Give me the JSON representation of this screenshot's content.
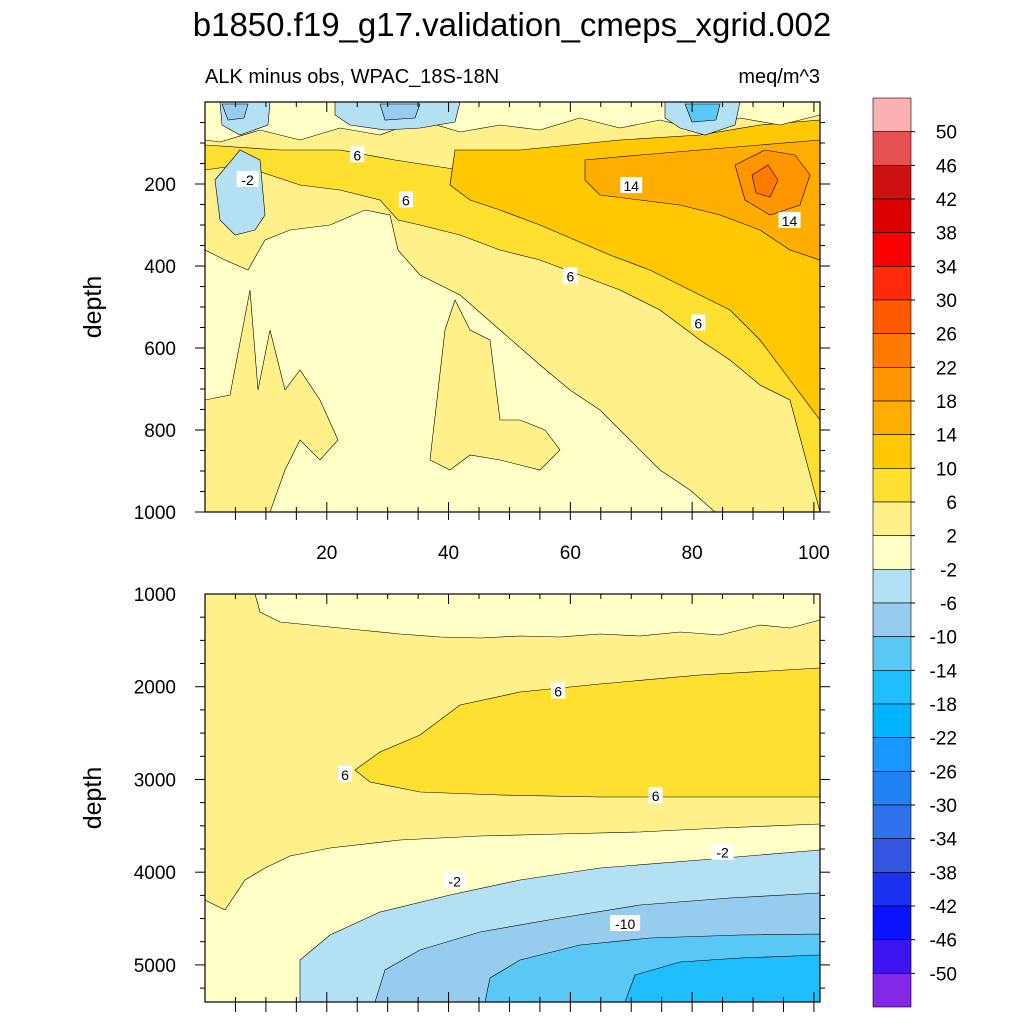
{
  "chart_data": {
    "type": "contour",
    "title": "b1850.f19_g17.validation_cmeps_xgrid.002",
    "variable_label": "ALK minus obs, WPAC_18S-18N",
    "units_label": "meq/m^3",
    "x": {
      "range": [
        0,
        101
      ],
      "tick_labels": [
        "20",
        "40",
        "60",
        "80",
        "100"
      ],
      "tick_values": [
        20,
        40,
        60,
        80,
        100
      ]
    },
    "panels": [
      {
        "name": "upper",
        "ylabel": "depth",
        "y_range": [
          0,
          1000
        ],
        "y_ticks": [
          200,
          400,
          600,
          800,
          1000
        ],
        "y_tick_labels": [
          "200",
          "400",
          "600",
          "800",
          "1000"
        ],
        "contour_labels": [
          {
            "text": "6",
            "x": 25,
            "y": 130
          },
          {
            "text": "-2",
            "x": 7,
            "y": 190
          },
          {
            "text": "6",
            "x": 33,
            "y": 240
          },
          {
            "text": "14",
            "x": 70,
            "y": 205
          },
          {
            "text": "14",
            "x": 96,
            "y": 290
          },
          {
            "text": "6",
            "x": 60,
            "y": 425
          },
          {
            "text": "6",
            "x": 81,
            "y": 540
          }
        ]
      },
      {
        "name": "lower",
        "ylabel": "depth",
        "y_range": [
          1000,
          5400
        ],
        "y_ticks": [
          1000,
          2000,
          3000,
          4000,
          5000
        ],
        "y_tick_labels": [
          "1000",
          "2000",
          "3000",
          "4000",
          "5000"
        ],
        "contour_labels": [
          {
            "text": "6",
            "x": 58,
            "y": 2050
          },
          {
            "text": "6",
            "x": 23,
            "y": 2950
          },
          {
            "text": "6",
            "x": 74,
            "y": 3180
          },
          {
            "text": "-2",
            "x": 85,
            "y": 3790
          },
          {
            "text": "-2",
            "x": 41,
            "y": 4100
          },
          {
            "text": "-10",
            "x": 69,
            "y": 4560
          }
        ]
      }
    ],
    "colorbar": {
      "labels": [
        "50",
        "46",
        "42",
        "38",
        "34",
        "30",
        "26",
        "22",
        "18",
        "14",
        "10",
        "6",
        "2",
        "-2",
        "-6",
        "-10",
        "-14",
        "-18",
        "-22",
        "-26",
        "-30",
        "-34",
        "-38",
        "-42",
        "-46",
        "-50"
      ],
      "colors": [
        "#fbb1b1",
        "#e65050",
        "#cd1010",
        "#dc0000",
        "#fa0000",
        "#ff2a0a",
        "#ff5a00",
        "#ff7a00",
        "#ff9600",
        "#ffad00",
        "#ffc800",
        "#ffe030",
        "#fff08a",
        "#ffffc6",
        "#b4e0f4",
        "#96cdee",
        "#5ac8f5",
        "#1ebeff",
        "#00b4ff",
        "#1a96ff",
        "#1e82f5",
        "#2f70ec",
        "#3456e0",
        "#1a32f0",
        "#0a12ff",
        "#3c14f0",
        "#8228e6"
      ]
    }
  }
}
